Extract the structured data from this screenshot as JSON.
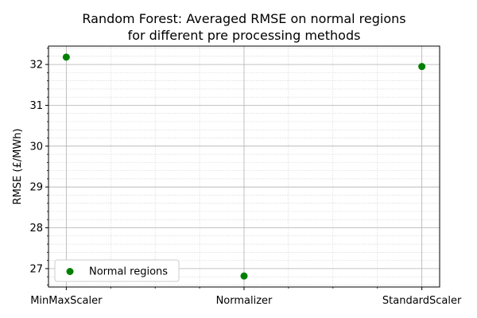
{
  "chart_data": {
    "type": "scatter",
    "title_lines": [
      "Random Forest: Averaged RMSE on normal regions",
      "for different pre processing methods"
    ],
    "xlabel": "",
    "ylabel": "RMSE (£/MWh)",
    "categories": [
      "MinMaxScaler",
      "Normalizer",
      "StandardScaler"
    ],
    "series": [
      {
        "name": "Normal regions",
        "values": [
          32.18,
          26.82,
          31.95
        ],
        "color": "#008000"
      }
    ],
    "ylim": [
      26.55,
      32.45
    ],
    "yticks": [
      27,
      28,
      29,
      30,
      31,
      32
    ],
    "minor_grid": true,
    "major_grid": true,
    "legend_placement": "lower-left"
  }
}
